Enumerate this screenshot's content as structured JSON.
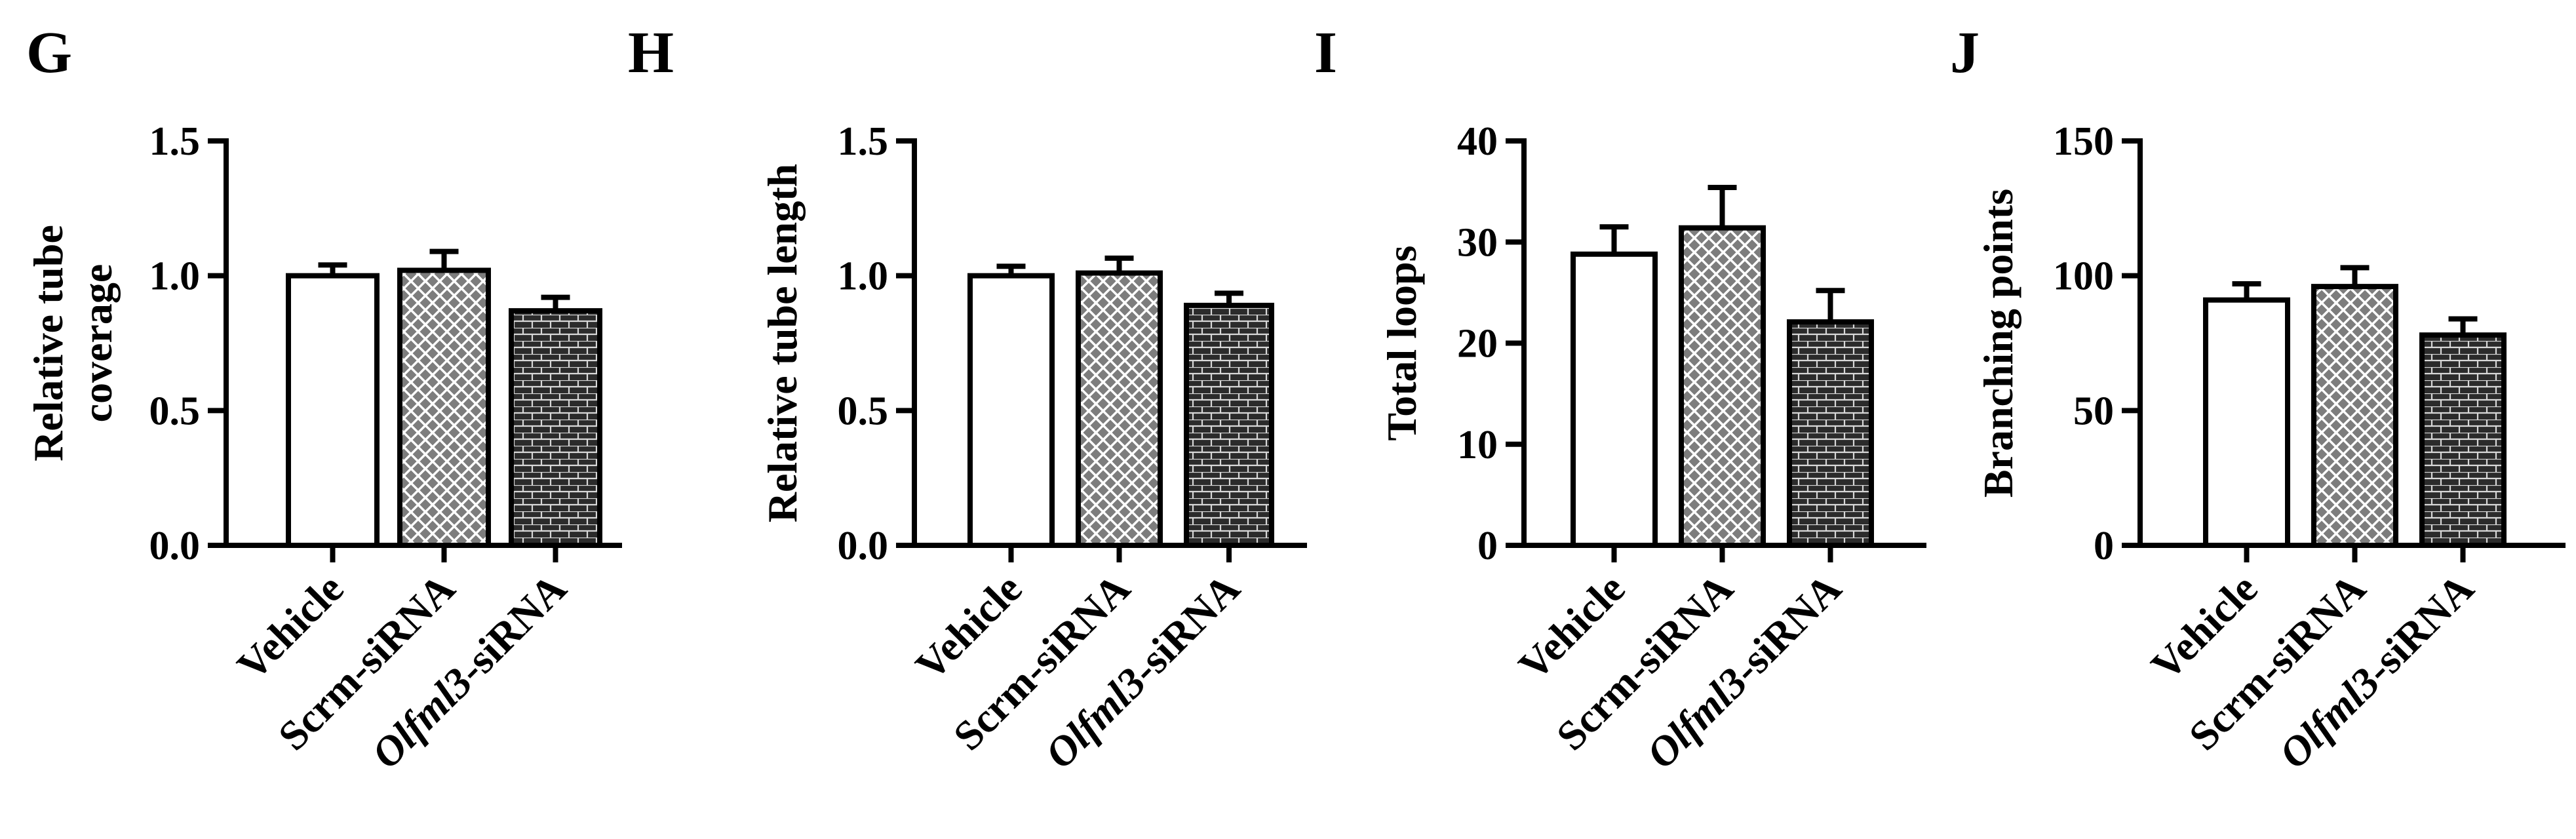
{
  "chart_data": [
    {
      "type": "bar",
      "panel": "G",
      "ylabel": [
        "Relative tube",
        "coverage"
      ],
      "ylim": [
        0,
        1.5
      ],
      "yticks": [
        "0.0",
        "0.5",
        "1.0",
        "1.5"
      ],
      "yticks_values": [
        0,
        0.5,
        1.0,
        1.5
      ],
      "categories": [
        {
          "text": "Vehicle"
        },
        {
          "text": "Scrm-siRNA"
        },
        {
          "italic": "Olfml3",
          "text": "-siRNA"
        }
      ],
      "values": [
        1.0,
        1.02,
        0.87
      ],
      "errors": [
        0.04,
        0.07,
        0.05
      ]
    },
    {
      "type": "bar",
      "panel": "H",
      "ylabel": [
        "Relative tube length"
      ],
      "ylim": [
        0,
        1.5
      ],
      "yticks": [
        "0.0",
        "0.5",
        "1.0",
        "1.5"
      ],
      "yticks_values": [
        0,
        0.5,
        1.0,
        1.5
      ],
      "categories": [
        {
          "text": "Vehicle"
        },
        {
          "text": "Scrm-siRNA"
        },
        {
          "italic": "Olfml3",
          "text": "-siRNA"
        }
      ],
      "values": [
        1.0,
        1.01,
        0.89
      ],
      "errors": [
        0.035,
        0.055,
        0.045
      ]
    },
    {
      "type": "bar",
      "panel": "I",
      "ylabel": [
        "Total loops"
      ],
      "ylim": [
        0,
        40
      ],
      "yticks": [
        "0",
        "10",
        "20",
        "30",
        "40"
      ],
      "yticks_values": [
        0,
        10,
        20,
        30,
        40
      ],
      "categories": [
        {
          "text": "Vehicle"
        },
        {
          "text": "Scrm-siRNA"
        },
        {
          "italic": "Olfml3",
          "text": "-siRNA"
        }
      ],
      "values": [
        28.8,
        31.4,
        22.1
      ],
      "errors": [
        2.7,
        4.0,
        3.1
      ]
    },
    {
      "type": "bar",
      "panel": "J",
      "ylabel": [
        "Branching points"
      ],
      "ylim": [
        0,
        150
      ],
      "yticks": [
        "0",
        "50",
        "100",
        "150"
      ],
      "yticks_values": [
        0,
        50,
        100,
        150
      ],
      "categories": [
        {
          "text": "Vehicle"
        },
        {
          "text": "Scrm-siRNA"
        },
        {
          "italic": "Olfml3",
          "text": "-siRNA"
        }
      ],
      "values": [
        91,
        96,
        78
      ],
      "errors": [
        6,
        7,
        6
      ]
    }
  ],
  "styles": {
    "bar_fills": [
      "solid-white",
      "crosshatch-grey",
      "brick-dark"
    ],
    "colors": {
      "ink": "#000000",
      "crosshatch_grey": "#7d7d7d",
      "brick_dark": "#2b2b2b",
      "white": "#ffffff"
    }
  }
}
